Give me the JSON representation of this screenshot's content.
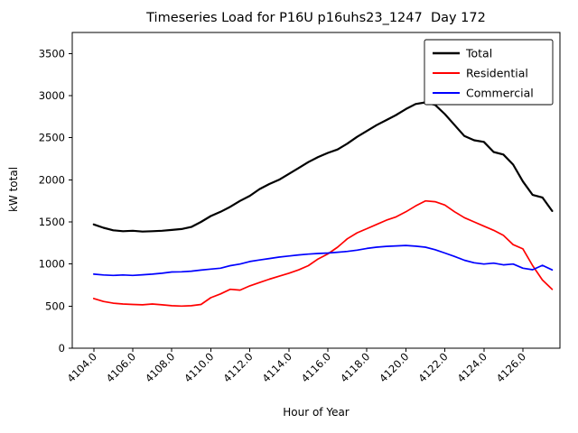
{
  "chart_data": {
    "type": "line",
    "title": "Timeseries Load for P16U p16uhs23_1247  Day 172",
    "xlabel": "Hour of Year",
    "ylabel": "kW total",
    "grid": false,
    "legend_position": "upper right",
    "xlim": [
      4102.9,
      4127.9
    ],
    "ylim": [
      0,
      3750
    ],
    "x_ticks": [
      4104,
      4106,
      4108,
      4110,
      4112,
      4114,
      4116,
      4118,
      4120,
      4122,
      4124,
      4126
    ],
    "x_tick_labels": [
      "4104.0",
      "4106.0",
      "4108.0",
      "4110.0",
      "4112.0",
      "4114.0",
      "4116.0",
      "4118.0",
      "4120.0",
      "4122.0",
      "4124.0",
      "4126.0"
    ],
    "y_ticks": [
      0,
      500,
      1000,
      1500,
      2000,
      2500,
      3000,
      3500
    ],
    "y_tick_labels": [
      "0",
      "500",
      "1000",
      "1500",
      "2000",
      "2500",
      "3000",
      "3500"
    ],
    "x": [
      4104.0,
      4104.5,
      4105.0,
      4105.5,
      4106.0,
      4106.5,
      4107.0,
      4107.5,
      4108.0,
      4108.5,
      4109.0,
      4109.5,
      4110.0,
      4110.5,
      4111.0,
      4111.5,
      4112.0,
      4112.5,
      4113.0,
      4113.5,
      4114.0,
      4114.5,
      4115.0,
      4115.5,
      4116.0,
      4116.5,
      4117.0,
      4117.5,
      4118.0,
      4118.5,
      4119.0,
      4119.5,
      4120.0,
      4120.5,
      4121.0,
      4121.5,
      4122.0,
      4122.5,
      4123.0,
      4123.5,
      4124.0,
      4124.5,
      4125.0,
      4125.5,
      4126.0,
      4126.5,
      4127.0,
      4127.5
    ],
    "series": [
      {
        "name": "Total",
        "color": "#000000",
        "linewidth": 2.2,
        "values": [
          1470,
          1430,
          1400,
          1390,
          1395,
          1385,
          1390,
          1395,
          1405,
          1415,
          1440,
          1500,
          1570,
          1620,
          1680,
          1750,
          1810,
          1890,
          1950,
          2000,
          2070,
          2140,
          2210,
          2270,
          2320,
          2360,
          2430,
          2510,
          2580,
          2650,
          2710,
          2770,
          2840,
          2900,
          2920,
          2890,
          2780,
          2650,
          2520,
          2470,
          2450,
          2330,
          2300,
          2180,
          1980,
          1820,
          1790,
          1630
        ]
      },
      {
        "name": "Residential",
        "color": "#ff0000",
        "linewidth": 1.7,
        "values": [
          590,
          555,
          535,
          525,
          520,
          515,
          525,
          515,
          505,
          500,
          505,
          520,
          600,
          645,
          700,
          690,
          740,
          780,
          820,
          855,
          890,
          930,
          980,
          1060,
          1120,
          1200,
          1300,
          1370,
          1420,
          1470,
          1520,
          1560,
          1620,
          1690,
          1750,
          1740,
          1700,
          1620,
          1550,
          1500,
          1450,
          1400,
          1340,
          1230,
          1180,
          980,
          810,
          700
        ]
      },
      {
        "name": "Commercial",
        "color": "#0000ff",
        "linewidth": 1.7,
        "values": [
          880,
          870,
          865,
          870,
          865,
          872,
          880,
          890,
          905,
          908,
          915,
          928,
          940,
          950,
          980,
          1000,
          1030,
          1048,
          1065,
          1082,
          1095,
          1108,
          1118,
          1125,
          1130,
          1140,
          1150,
          1165,
          1185,
          1200,
          1210,
          1215,
          1220,
          1212,
          1200,
          1170,
          1130,
          1090,
          1045,
          1015,
          1000,
          1010,
          990,
          1000,
          950,
          932,
          985,
          930
        ]
      }
    ]
  }
}
